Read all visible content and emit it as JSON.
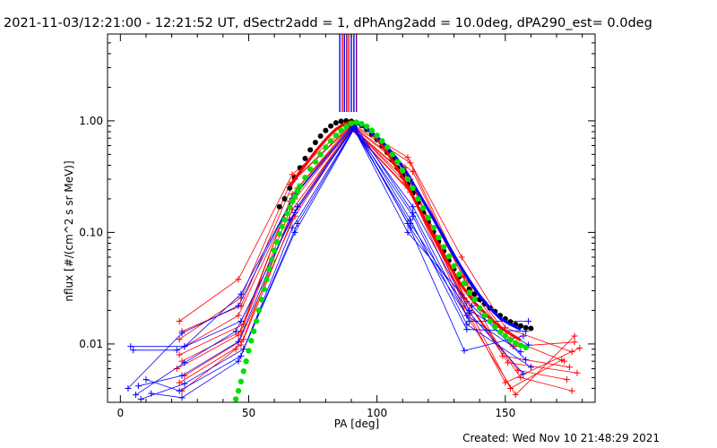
{
  "chart_data": {
    "type": "line",
    "title": "2021-11-03/12:21:00 - 12:21:52 UT, dSectr2add = 1, dPhAng2add = 10.0deg, dPA290_est=  0.0deg",
    "xlabel": "PA [deg]",
    "ylabel": "nflux [#/(cm^2 s sr MeV)]",
    "xlim": [
      -5,
      185
    ],
    "ylim": [
      0.003,
      6
    ],
    "yscale": "log",
    "grid": false,
    "xticks": [
      0,
      50,
      100,
      150
    ],
    "yticks": [
      {
        "value": 1,
        "label": "1.00"
      },
      {
        "value": 0.1,
        "label": "0.10"
      },
      {
        "value": 0.01,
        "label": "0.01"
      }
    ],
    "vertical_markers": [
      {
        "x": 85.5,
        "color": "#0000ff"
      },
      {
        "x": 86.5,
        "color": "#ff0000"
      },
      {
        "x": 87.3,
        "color": "#0000ff"
      },
      {
        "x": 88.2,
        "color": "#7f007f"
      },
      {
        "x": 89.0,
        "color": "#ff0000"
      },
      {
        "x": 90.0,
        "color": "#0000ff"
      },
      {
        "x": 91.0,
        "color": "#0000ff"
      },
      {
        "x": 92.0,
        "color": "#7f007f"
      }
    ],
    "vertical_marker_range": [
      1.2,
      6
    ],
    "series": [
      {
        "color": "#ff0000",
        "marker": "plus",
        "lines": [
          {
            "x": [
              23,
              46,
              67,
              90,
              112,
              133,
              150,
              176
            ],
            "y": [
              0.016,
              0.038,
              0.33,
              0.95,
              0.47,
              0.06,
              0.014,
              0.0085
            ]
          },
          {
            "x": [
              24,
              47,
              68,
              90,
              113,
              134,
              152,
              173
            ],
            "y": [
              0.013,
              0.022,
              0.3,
              0.93,
              0.42,
              0.04,
              0.011,
              0.007
            ]
          },
          {
            "x": [
              23,
              47,
              66,
              90,
              111,
              135,
              153,
              177
            ],
            "y": [
              0.011,
              0.026,
              0.27,
              0.9,
              0.38,
              0.035,
              0.0095,
              0.0104
            ]
          },
          {
            "x": [
              25,
              46,
              69,
              90,
              114,
              136,
              149,
              175
            ],
            "y": [
              0.0095,
              0.018,
              0.25,
              0.92,
              0.35,
              0.03,
              0.0078,
              0.0062
            ]
          },
          {
            "x": [
              23,
              48,
              67,
              90,
              112,
              134,
              151,
              178
            ],
            "y": [
              0.008,
              0.015,
              0.22,
              0.88,
              0.32,
              0.026,
              0.0068,
              0.0055
            ]
          },
          {
            "x": [
              24,
              47,
              68,
              90,
              113,
              135,
              155,
              174
            ],
            "y": [
              0.007,
              0.013,
              0.2,
              0.86,
              0.3,
              0.024,
              0.0058,
              0.0048
            ]
          },
          {
            "x": [
              22,
              46,
              66,
              90,
              111,
              133,
              156,
              176
            ],
            "y": [
              0.006,
              0.012,
              0.19,
              0.9,
              0.28,
              0.028,
              0.005,
              0.0038
            ]
          },
          {
            "x": [
              25,
              48,
              69,
              90,
              114,
              134,
              150,
              179
            ],
            "y": [
              0.0052,
              0.011,
              0.17,
              0.87,
              0.26,
              0.022,
              0.0045,
              0.0092
            ]
          },
          {
            "x": [
              23,
              47,
              67,
              90,
              112,
              136,
              152,
              172
            ],
            "y": [
              0.0045,
              0.0098,
              0.16,
              0.85,
              0.25,
              0.02,
              0.004,
              0.0072
            ]
          },
          {
            "x": [
              24,
              45,
              68,
              90,
              113,
              135,
              154,
              177
            ],
            "y": [
              0.0038,
              0.009,
              0.14,
              0.84,
              0.23,
              0.018,
              0.0035,
              0.0118
            ]
          }
        ]
      },
      {
        "color": "#0000ff",
        "marker": "plus",
        "lines": [
          {
            "x": [
              4,
              25,
              47,
              68,
              91,
              114,
              136,
              159
            ],
            "y": [
              0.0095,
              0.0095,
              0.028,
              0.22,
              0.95,
              0.15,
              0.016,
              0.016
            ]
          },
          {
            "x": [
              3,
              24,
              46,
              67,
              91,
              113,
              135,
              158
            ],
            "y": [
              0.004,
              0.0125,
              0.022,
              0.2,
              0.92,
              0.13,
              0.0135,
              0.013
            ]
          },
          {
            "x": [
              5,
              22,
              47,
              69,
              91,
              112,
              134,
              157
            ],
            "y": [
              0.0088,
              0.0088,
              0.016,
              0.17,
              0.9,
              0.12,
              0.0087,
              0.0118
            ]
          },
          {
            "x": [
              6,
              25,
              45,
              68,
              91,
              114,
              136,
              159
            ],
            "y": [
              0.0035,
              0.0068,
              0.013,
              0.15,
              0.88,
              0.17,
              0.02,
              0.0098
            ]
          },
          {
            "x": [
              7,
              24,
              46,
              66,
              91,
              113,
              135,
              156
            ],
            "y": [
              0.0042,
              0.0052,
              0.0105,
              0.13,
              0.87,
              0.11,
              0.018,
              0.0085
            ]
          },
          {
            "x": [
              8,
              25,
              48,
              69,
              91,
              112,
              137,
              158
            ],
            "y": [
              0.0032,
              0.0044,
              0.009,
              0.12,
              0.85,
              0.1,
              0.022,
              0.0072
            ]
          },
          {
            "x": [
              10,
              23,
              47,
              67,
              91,
              114,
              135,
              160
            ],
            "y": [
              0.0048,
              0.0038,
              0.0078,
              0.11,
              0.86,
              0.14,
              0.015,
              0.0062
            ]
          },
          {
            "x": [
              12,
              24,
              46,
              68,
              91,
              113,
              136,
              157
            ],
            "y": [
              0.0036,
              0.0033,
              0.007,
              0.1,
              0.84,
              0.12,
              0.019,
              0.0054
            ]
          }
        ]
      },
      {
        "color": "#000000",
        "marker": "circle",
        "x": [
          62,
          64,
          66,
          68,
          70,
          72,
          74,
          76,
          78,
          80,
          82,
          84,
          86,
          88,
          90,
          92,
          94,
          96,
          98,
          100,
          102,
          104,
          106,
          108,
          110,
          112,
          114,
          116,
          118,
          120,
          122,
          124,
          126,
          128,
          130,
          132,
          134,
          136,
          138,
          140,
          142,
          144,
          146,
          148,
          150,
          152,
          154,
          156,
          158,
          160
        ],
        "y": [
          0.17,
          0.2,
          0.25,
          0.31,
          0.38,
          0.46,
          0.55,
          0.64,
          0.73,
          0.82,
          0.9,
          0.96,
          0.99,
          1.0,
          0.99,
          0.96,
          0.91,
          0.84,
          0.76,
          0.68,
          0.6,
          0.52,
          0.45,
          0.38,
          0.32,
          0.27,
          0.225,
          0.185,
          0.152,
          0.125,
          0.102,
          0.083,
          0.068,
          0.056,
          0.047,
          0.04,
          0.035,
          0.031,
          0.028,
          0.025,
          0.023,
          0.021,
          0.0195,
          0.018,
          0.0168,
          0.0158,
          0.015,
          0.0145,
          0.014,
          0.0138
        ]
      },
      {
        "color": "#ff0000",
        "marker": "line",
        "x": [
          66,
          68,
          70,
          72,
          74,
          76,
          78,
          80,
          82,
          84,
          86,
          88,
          90,
          92,
          94,
          96,
          98,
          100,
          102,
          104,
          106,
          108,
          110,
          112,
          114,
          116,
          118,
          120,
          122,
          124,
          126,
          128,
          130,
          132,
          134,
          136,
          138,
          140,
          142,
          144,
          146,
          148,
          150,
          152,
          154,
          156
        ],
        "y": [
          0.26,
          0.3,
          0.35,
          0.4,
          0.46,
          0.53,
          0.6,
          0.68,
          0.76,
          0.84,
          0.9,
          0.95,
          0.98,
          0.97,
          0.93,
          0.86,
          0.78,
          0.69,
          0.6,
          0.52,
          0.44,
          0.37,
          0.31,
          0.26,
          0.21,
          0.17,
          0.14,
          0.115,
          0.094,
          0.077,
          0.063,
          0.052,
          0.043,
          0.036,
          0.031,
          0.027,
          0.0235,
          0.021,
          0.019,
          0.017,
          0.0155,
          0.0142,
          0.0132,
          0.0123,
          0.0115,
          0.0108
        ]
      },
      {
        "color": "#0000ff",
        "marker": "line",
        "x": [
          92,
          96,
          100,
          104,
          108,
          112,
          116,
          120,
          124,
          128,
          132,
          136,
          140,
          144,
          148,
          152,
          156
        ],
        "y": [
          0.96,
          0.85,
          0.72,
          0.58,
          0.45,
          0.33,
          0.23,
          0.16,
          0.11,
          0.075,
          0.052,
          0.037,
          0.027,
          0.021,
          0.017,
          0.015,
          0.0135
        ]
      },
      {
        "color": "#00e000",
        "marker": "circle",
        "x": [
          45,
          46,
          47,
          48,
          49,
          50,
          51,
          52,
          53,
          54,
          55,
          56,
          57,
          58,
          59,
          60,
          61,
          62,
          63,
          64,
          65,
          66,
          67,
          68,
          69,
          70,
          72,
          74,
          76,
          78,
          80,
          82,
          84,
          86,
          88,
          90,
          92,
          94,
          96,
          98,
          100,
          102,
          104,
          106,
          108,
          110,
          112,
          114,
          116,
          118,
          120,
          122,
          124,
          126,
          128,
          130,
          132,
          134,
          136,
          138,
          140,
          142,
          144,
          146,
          148,
          150,
          152,
          154,
          156,
          158
        ],
        "y": [
          0.0032,
          0.0038,
          0.0046,
          0.0057,
          0.007,
          0.0087,
          0.0107,
          0.013,
          0.016,
          0.02,
          0.025,
          0.031,
          0.038,
          0.047,
          0.057,
          0.069,
          0.082,
          0.097,
          0.113,
          0.13,
          0.148,
          0.168,
          0.19,
          0.21,
          0.235,
          0.26,
          0.31,
          0.37,
          0.43,
          0.5,
          0.58,
          0.66,
          0.74,
          0.82,
          0.89,
          0.95,
          0.97,
          0.94,
          0.89,
          0.82,
          0.74,
          0.66,
          0.58,
          0.5,
          0.43,
          0.36,
          0.3,
          0.25,
          0.2,
          0.165,
          0.135,
          0.11,
          0.09,
          0.074,
          0.061,
          0.05,
          0.042,
          0.035,
          0.029,
          0.025,
          0.021,
          0.018,
          0.016,
          0.0142,
          0.0128,
          0.0118,
          0.0109,
          0.0102,
          0.0097,
          0.0093
        ]
      }
    ]
  },
  "footer": {
    "created": "Created: Wed Nov 10 21:48:29 2021"
  }
}
